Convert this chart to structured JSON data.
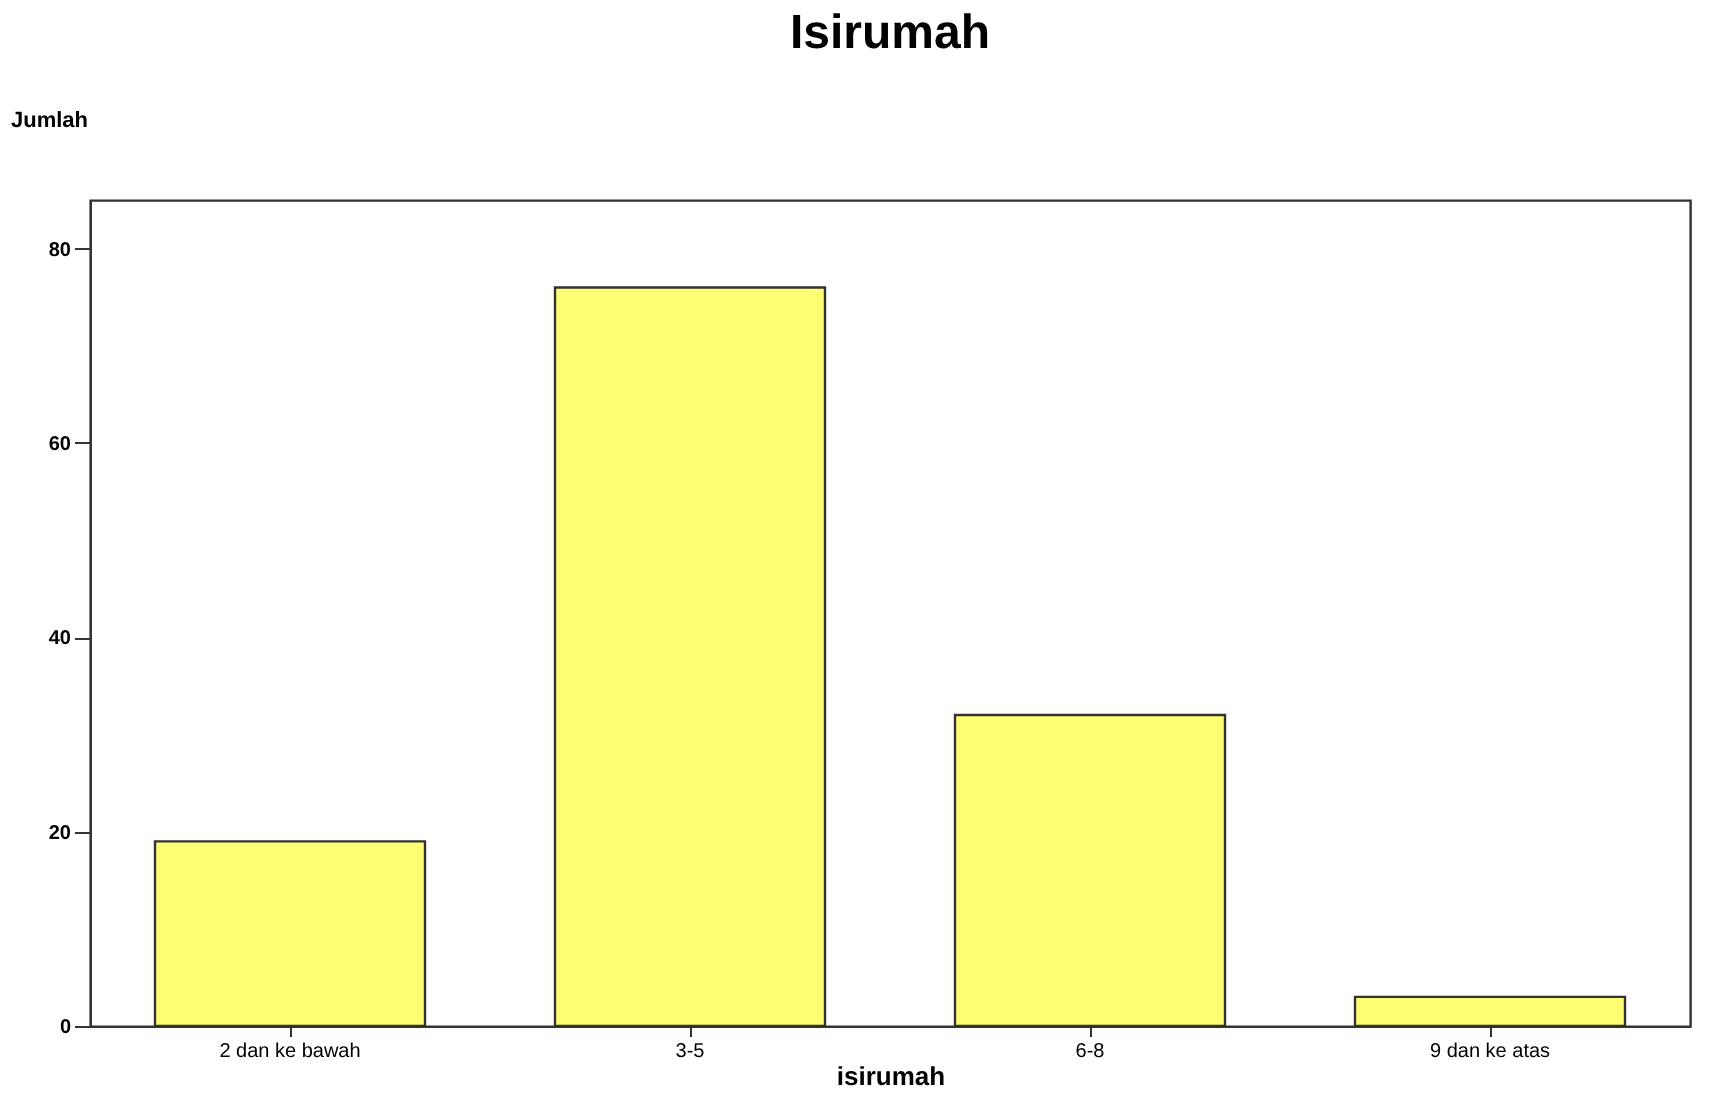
{
  "chart_data": {
    "type": "bar",
    "title": "Isirumah",
    "xlabel": "isirumah",
    "ylabel": "Jumlah",
    "categories": [
      "2 dan ke bawah",
      "3-5",
      "6-8",
      "9 dan ke atas"
    ],
    "values": [
      19,
      76,
      32,
      3
    ],
    "color": "#ffff73",
    "ylim": [
      0,
      85
    ],
    "yticks": [
      0,
      20,
      40,
      60,
      80
    ],
    "grid": false
  }
}
